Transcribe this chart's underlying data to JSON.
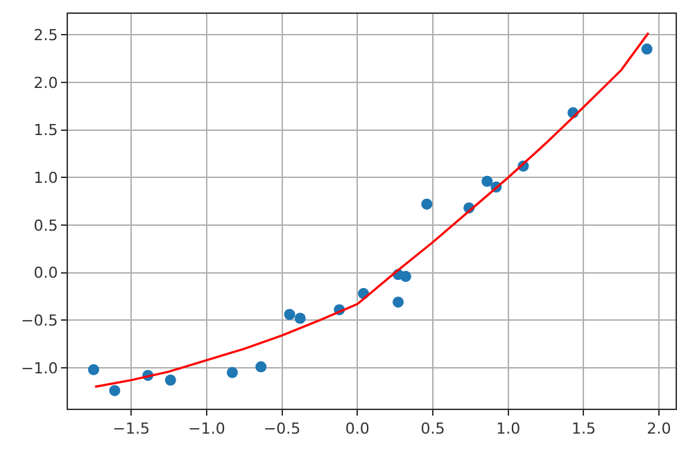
{
  "chart_data": {
    "type": "scatter",
    "xlim": [
      -1.92,
      2.11
    ],
    "ylim": [
      -1.43,
      2.72
    ],
    "xticks": [
      -1.5,
      {
        "value": -1,
        "label": "−1.0"
      },
      -0.5,
      {
        "value": 0,
        "label": "0.0"
      },
      0.5,
      {
        "value": 1,
        "label": "1.0"
      },
      1.5,
      {
        "value": 2,
        "label": "2.0"
      }
    ],
    "yticks": [
      {
        "value": -1,
        "label": "−1.0"
      },
      -0.5,
      {
        "value": 0,
        "label": "0.0"
      },
      0.5,
      {
        "value": 1,
        "label": "1.0"
      },
      1.5,
      {
        "value": 2,
        "label": "2.0"
      },
      2.5
    ],
    "grid": true,
    "series": [
      {
        "color": "#1f77b4",
        "marker": "circle",
        "x": [
          -1.75,
          -1.61,
          -1.39,
          -1.24,
          -0.83,
          -0.64,
          -0.45,
          -0.38,
          -0.12,
          0.04,
          0.27,
          0.27,
          0.32,
          0.46,
          0.74,
          0.86,
          0.92,
          1.1,
          1.43,
          1.92
        ],
        "values": [
          -1.02,
          -1.24,
          -1.08,
          -1.13,
          -1.05,
          -0.99,
          -0.44,
          -0.48,
          -0.39,
          -0.22,
          -0.31,
          -0.02,
          -0.04,
          0.72,
          0.68,
          0.96,
          0.9,
          1.12,
          1.68,
          2.35
        ]
      },
      {
        "type": "line",
        "color": "#ff0000",
        "x": [
          -1.74,
          -1.5,
          -1.25,
          -1.0,
          -0.75,
          -0.5,
          -0.25,
          0.0,
          0.25,
          0.5,
          0.75,
          1.0,
          1.25,
          1.5,
          1.75,
          1.93
        ],
        "values": [
          -1.2,
          -1.13,
          -1.04,
          -0.92,
          -0.8,
          -0.66,
          -0.5,
          -0.33,
          0.0,
          0.32,
          0.66,
          1.0,
          1.36,
          1.74,
          2.13,
          2.52
        ]
      }
    ]
  }
}
